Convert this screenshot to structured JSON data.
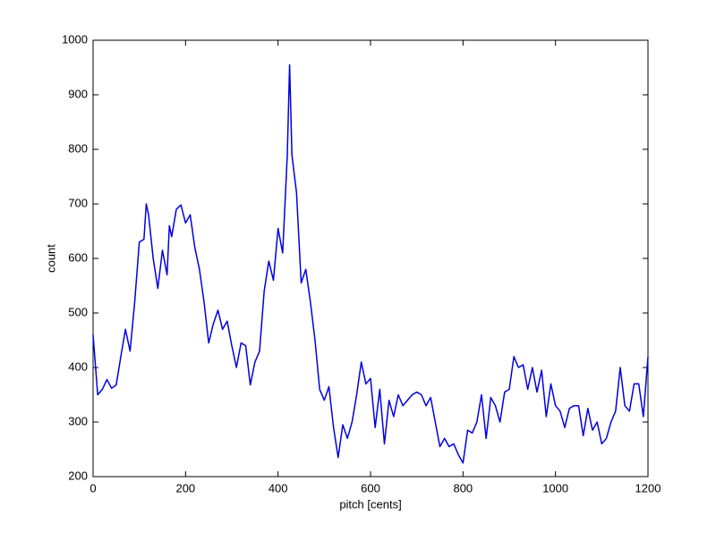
{
  "chart_data": {
    "type": "line",
    "xlabel": "pitch [cents]",
    "ylabel": "count",
    "x": [
      0,
      10,
      20,
      30,
      40,
      50,
      60,
      70,
      80,
      90,
      100,
      110,
      115,
      120,
      130,
      140,
      150,
      160,
      165,
      170,
      180,
      190,
      200,
      210,
      220,
      230,
      240,
      250,
      260,
      270,
      280,
      290,
      300,
      310,
      320,
      330,
      340,
      350,
      360,
      370,
      380,
      390,
      400,
      410,
      420,
      425,
      430,
      440,
      450,
      460,
      470,
      480,
      490,
      500,
      510,
      520,
      530,
      540,
      550,
      560,
      570,
      580,
      590,
      600,
      610,
      620,
      630,
      640,
      650,
      660,
      670,
      680,
      690,
      700,
      710,
      720,
      730,
      740,
      750,
      760,
      770,
      780,
      790,
      800,
      810,
      820,
      830,
      840,
      850,
      860,
      870,
      880,
      890,
      900,
      910,
      920,
      930,
      940,
      950,
      960,
      970,
      980,
      990,
      1000,
      1010,
      1020,
      1030,
      1040,
      1050,
      1060,
      1070,
      1080,
      1090,
      1100,
      1110,
      1120,
      1130,
      1140,
      1150,
      1160,
      1170,
      1180,
      1190,
      1200
    ],
    "series": [
      {
        "color": "#0000e0",
        "values": [
          460,
          350,
          360,
          378,
          362,
          368,
          420,
          470,
          430,
          520,
          630,
          635,
          700,
          680,
          600,
          545,
          615,
          570,
          660,
          640,
          690,
          698,
          665,
          680,
          620,
          580,
          520,
          445,
          480,
          505,
          470,
          485,
          440,
          400,
          445,
          440,
          368,
          410,
          430,
          540,
          595,
          560,
          655,
          610,
          790,
          955,
          790,
          720,
          555,
          580,
          520,
          450,
          360,
          340,
          365,
          290,
          235,
          295,
          270,
          300,
          350,
          410,
          370,
          380,
          290,
          360,
          260,
          340,
          310,
          350,
          330,
          340,
          350,
          355,
          350,
          330,
          345,
          300,
          255,
          270,
          255,
          260,
          240,
          225,
          285,
          280,
          300,
          350,
          270,
          345,
          330,
          300,
          355,
          360,
          420,
          400,
          405,
          360,
          400,
          355,
          395,
          310,
          370,
          330,
          320,
          290,
          325,
          330,
          330,
          275,
          325,
          285,
          300,
          260,
          270,
          300,
          320,
          400,
          330,
          320,
          370,
          370,
          310,
          420
        ]
      }
    ],
    "xlim": [
      0,
      1200
    ],
    "xticks": [
      0,
      200,
      400,
      600,
      800,
      1000,
      1200
    ],
    "ylim": [
      200,
      1000
    ],
    "yticks": [
      200,
      300,
      400,
      500,
      600,
      700,
      800,
      900,
      1000
    ]
  }
}
